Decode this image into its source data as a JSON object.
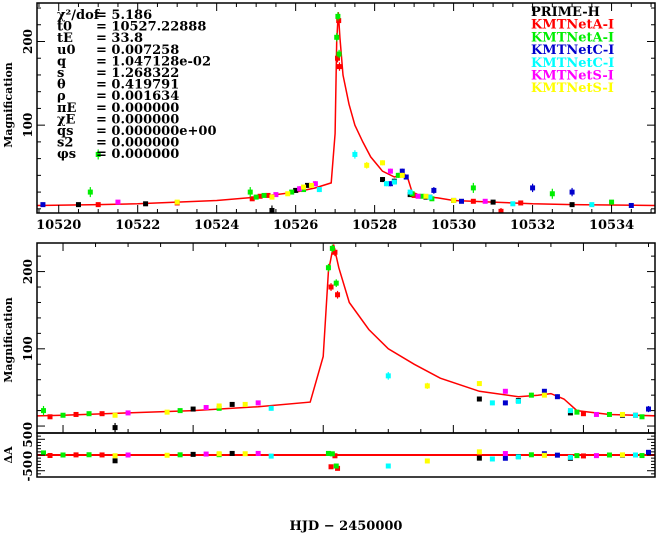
{
  "chart_data": [
    {
      "type": "scatter",
      "panel": "full light curve",
      "xlim": [
        10519.45,
        10535.1
      ],
      "ylim": [
        -5,
        246
      ],
      "xticks": [
        10520,
        10522,
        10524,
        10526,
        10528,
        10530,
        10532,
        10534
      ],
      "yticks": [
        100,
        200
      ],
      "ylabel": "Magnification",
      "legend_placement": "top-right",
      "params": [
        {
          "label": "χ²/dof",
          "value": "= 5.186"
        },
        {
          "label": "t0",
          "value": "= 10527.22888"
        },
        {
          "label": "tE",
          "value": "= 33.8"
        },
        {
          "label": "u0",
          "value": "= 0.007258"
        },
        {
          "label": "q",
          "value": "= 1.047128e-02"
        },
        {
          "label": "s",
          "value": "= 1.268322"
        },
        {
          "label": "θ",
          "value": "= 0.419791"
        },
        {
          "label": "ρ",
          "value": "= 0.001634"
        },
        {
          "label": "πE",
          "value": "= 0.000000"
        },
        {
          "label": "χE",
          "value": "= 0.000000"
        },
        {
          "label": "qs",
          "value": "= 0.000000e+00"
        },
        {
          "label": "s2",
          "value": "= 0.000000"
        },
        {
          "label": "φs",
          "value": "= 0.000000"
        }
      ]
    },
    {
      "type": "scatter",
      "panel": "zoomed light curve",
      "xlim": [
        10524.8,
        10529.55
      ],
      "ylim": [
        -9,
        237
      ],
      "xticks": [
        10525,
        10526,
        10527,
        10528,
        10529
      ],
      "yticks": [
        0,
        100,
        200
      ],
      "ylabel": "Magnification"
    },
    {
      "type": "scatter",
      "panel": "residuals",
      "xlim": [
        10524.8,
        10529.55
      ],
      "ylim": [
        -70,
        70
      ],
      "yticks": [
        -50,
        0,
        50
      ],
      "ylabel": "ΔA",
      "xlabel": "HJD − 2450000"
    }
  ],
  "model": {
    "color": "#ff0000",
    "points": [
      [
        10519.4,
        4
      ],
      [
        10521,
        5
      ],
      [
        10522,
        6
      ],
      [
        10523,
        8
      ],
      [
        10524,
        10
      ],
      [
        10525,
        14
      ],
      [
        10525.5,
        17
      ],
      [
        10526,
        20
      ],
      [
        10526.5,
        25
      ],
      [
        10526.9,
        31
      ],
      [
        10527.0,
        90
      ],
      [
        10527.04,
        200
      ],
      [
        10527.08,
        235
      ],
      [
        10527.12,
        205
      ],
      [
        10527.2,
        160
      ],
      [
        10527.35,
        125
      ],
      [
        10527.5,
        100
      ],
      [
        10527.7,
        80
      ],
      [
        10527.9,
        62
      ],
      [
        10528.2,
        45
      ],
      [
        10528.5,
        38
      ],
      [
        10528.65,
        40
      ],
      [
        10528.75,
        42
      ],
      [
        10528.85,
        35
      ],
      [
        10528.95,
        20
      ],
      [
        10529.2,
        15
      ],
      [
        10529.6,
        13
      ],
      [
        10530,
        10
      ],
      [
        10531,
        8
      ],
      [
        10532,
        6
      ],
      [
        10533,
        5
      ],
      [
        10535.2,
        4
      ]
    ]
  },
  "series": [
    {
      "name": "PRIME-H",
      "color": "#000000",
      "points": [
        [
          10525.4,
          -2,
          6
        ],
        [
          10526.0,
          22,
          2
        ],
        [
          10526.3,
          28,
          2
        ],
        [
          10528.2,
          35,
          3
        ],
        [
          10528.5,
          33,
          3
        ],
        [
          10528.9,
          17,
          2
        ],
        [
          10529.3,
          14,
          2
        ],
        [
          10530.0,
          10,
          2
        ],
        [
          10531.0,
          8,
          2
        ],
        [
          10533.0,
          5,
          2
        ],
        [
          10520.5,
          5,
          1
        ],
        [
          10522.2,
          6,
          1
        ]
      ]
    },
    {
      "name": "KMTNetA-I",
      "color": "#ff0000",
      "points": [
        [
          10524.9,
          12,
          2
        ],
        [
          10525.1,
          15,
          2
        ],
        [
          10525.3,
          16,
          2
        ],
        [
          10527.06,
          180,
          5
        ],
        [
          10527.09,
          225,
          5
        ],
        [
          10527.11,
          170,
          5
        ],
        [
          10529.0,
          16,
          2
        ],
        [
          10529.4,
          14,
          2
        ],
        [
          10530.5,
          9,
          2
        ],
        [
          10531.2,
          -3,
          4
        ],
        [
          10531.7,
          7,
          2
        ],
        [
          10521.0,
          5,
          1
        ],
        [
          10523.0,
          7,
          1
        ]
      ]
    },
    {
      "name": "KMTNetA-I",
      "color": "#00ee00",
      "points": [
        [
          10524.85,
          20,
          6
        ],
        [
          10525.0,
          14,
          2
        ],
        [
          10525.2,
          16,
          2
        ],
        [
          10525.9,
          20,
          2
        ],
        [
          10526.2,
          23,
          2
        ],
        [
          10527.04,
          205,
          5
        ],
        [
          10527.07,
          230,
          5
        ],
        [
          10527.1,
          185,
          5
        ],
        [
          10528.6,
          40,
          3
        ],
        [
          10528.95,
          18,
          2
        ],
        [
          10529.2,
          15,
          2
        ],
        [
          10529.45,
          12,
          2
        ],
        [
          10520.8,
          20,
          6
        ],
        [
          10521.0,
          65,
          6
        ],
        [
          10530.5,
          25,
          6
        ],
        [
          10532.5,
          18,
          6
        ],
        [
          10534.0,
          8,
          2
        ]
      ]
    },
    {
      "name": "KMTNetC-I",
      "color": "#0000cc",
      "points": [
        [
          10528.4,
          30,
          3
        ],
        [
          10528.7,
          45,
          3
        ],
        [
          10528.8,
          38,
          3
        ],
        [
          10529.5,
          22,
          4
        ],
        [
          10530.2,
          9,
          2
        ],
        [
          10532.0,
          25,
          5
        ],
        [
          10533.0,
          20,
          5
        ],
        [
          10519.6,
          5,
          1
        ],
        [
          10534.5,
          4,
          1
        ]
      ]
    },
    {
      "name": "KMTNetC-I",
      "color": "#00ffff",
      "points": [
        [
          10526.6,
          23,
          3
        ],
        [
          10527.5,
          65,
          5
        ],
        [
          10528.3,
          30,
          3
        ],
        [
          10528.5,
          32,
          3
        ],
        [
          10528.9,
          20,
          2
        ],
        [
          10529.4,
          14,
          2
        ],
        [
          10531.5,
          6,
          1
        ],
        [
          10533.5,
          5,
          1
        ]
      ]
    },
    {
      "name": "KMTNetS-I",
      "color": "#ff00ff",
      "points": [
        [
          10525.5,
          17,
          2
        ],
        [
          10526.1,
          24,
          3
        ],
        [
          10526.5,
          30,
          3
        ],
        [
          10528.4,
          45,
          3
        ],
        [
          10529.1,
          15,
          2
        ],
        [
          10521.5,
          8,
          2
        ],
        [
          10530.8,
          9,
          2
        ]
      ]
    },
    {
      "name": "KMTNetS-I",
      "color": "#ffff00",
      "points": [
        [
          10525.4,
          14,
          2
        ],
        [
          10525.8,
          18,
          2
        ],
        [
          10526.2,
          26,
          2
        ],
        [
          10526.4,
          28,
          2
        ],
        [
          10528.2,
          55,
          3
        ],
        [
          10528.7,
          40,
          3
        ],
        [
          10529.3,
          15,
          2
        ],
        [
          10523.0,
          8,
          2
        ],
        [
          10527.8,
          52,
          4
        ],
        [
          10530.0,
          10,
          2
        ]
      ]
    }
  ]
}
